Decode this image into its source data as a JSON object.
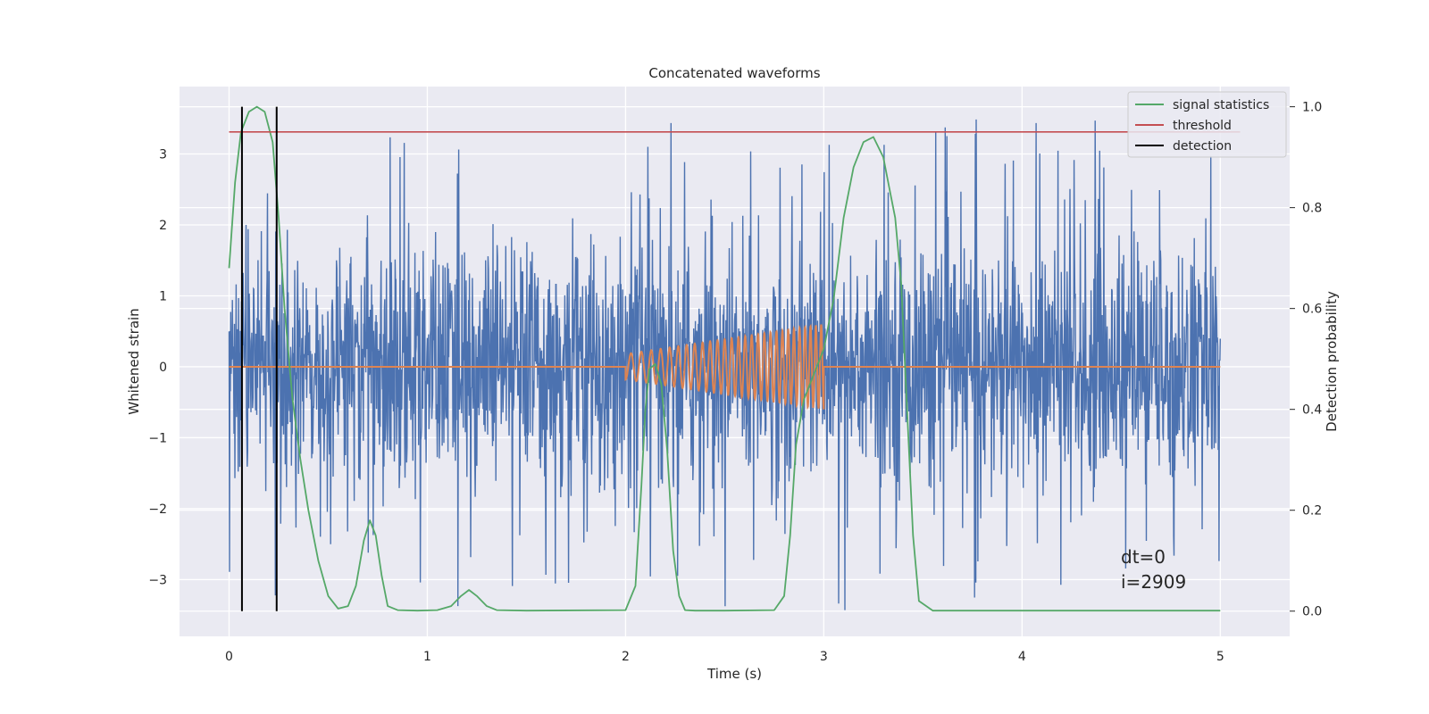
{
  "chart_data": {
    "type": "line",
    "title": "Concatenated waveforms",
    "xlabel": "Time (s)",
    "ylabel": "Whitened strain",
    "y2label": "Detection probability",
    "xlim": [
      -0.25,
      5.35
    ],
    "ylim": [
      -3.8,
      3.95
    ],
    "y2lim": [
      -0.05,
      1.04
    ],
    "x_ticks": [
      0,
      1,
      2,
      3,
      4,
      5
    ],
    "y_ticks": [
      -3,
      -2,
      -1,
      0,
      1,
      2,
      3
    ],
    "y2_ticks": [
      0.0,
      0.2,
      0.4,
      0.6,
      0.8,
      1.0
    ],
    "x_tick_labels": [
      "0",
      "1",
      "2",
      "3",
      "4",
      "5"
    ],
    "y_tick_labels": [
      "−3",
      "−2",
      "−1",
      "0",
      "1",
      "2",
      "3"
    ],
    "y2_tick_labels": [
      "0.0",
      "0.2",
      "0.4",
      "0.6",
      "0.8",
      "1.0"
    ],
    "grid": true,
    "legend_position": "top-right",
    "legend": [
      "signal statistics",
      "threshold",
      "detection"
    ],
    "colors": {
      "strain": "#4c72b0",
      "injection": "#dd8452",
      "signal_statistics": "#55a868",
      "threshold": "#c44e52",
      "detection": "#000000",
      "plot_bg": "#eaeaf2",
      "grid": "#ffffff"
    },
    "series": [
      {
        "name": "strain noise",
        "axis": "left",
        "x_range": [
          0,
          5
        ],
        "approx_range": [
          -3.5,
          3.6
        ]
      },
      {
        "name": "injected signal",
        "axis": "left",
        "x_range": [
          2.0,
          3.0
        ],
        "amplitude_start": 0.18,
        "amplitude_end": 0.6
      },
      {
        "name": "signal statistics",
        "axis": "right",
        "x": [
          0.0,
          0.03,
          0.06,
          0.1,
          0.14,
          0.18,
          0.22,
          0.25,
          0.28,
          0.32,
          0.36,
          0.4,
          0.45,
          0.5,
          0.55,
          0.6,
          0.64,
          0.68,
          0.71,
          0.74,
          0.77,
          0.8,
          0.85,
          0.95,
          1.05,
          1.12,
          1.17,
          1.21,
          1.25,
          1.3,
          1.35,
          1.5,
          2.0,
          2.05,
          2.08,
          2.1,
          2.12,
          2.15,
          2.18,
          2.21,
          2.24,
          2.27,
          2.3,
          2.35,
          2.5,
          2.75,
          2.8,
          2.83,
          2.86,
          2.9,
          2.95,
          3.0,
          3.05,
          3.1,
          3.15,
          3.2,
          3.25,
          3.3,
          3.33,
          3.36,
          3.39,
          3.42,
          3.45,
          3.48,
          3.55,
          4.0,
          5.0
        ],
        "y": [
          0.68,
          0.85,
          0.95,
          0.99,
          1.0,
          0.99,
          0.93,
          0.78,
          0.6,
          0.42,
          0.3,
          0.2,
          0.1,
          0.03,
          0.005,
          0.01,
          0.05,
          0.14,
          0.18,
          0.15,
          0.07,
          0.01,
          0.002,
          0.001,
          0.002,
          0.01,
          0.03,
          0.042,
          0.03,
          0.01,
          0.002,
          0.001,
          0.002,
          0.05,
          0.25,
          0.4,
          0.48,
          0.49,
          0.45,
          0.32,
          0.12,
          0.03,
          0.002,
          0.001,
          0.001,
          0.002,
          0.03,
          0.15,
          0.33,
          0.42,
          0.47,
          0.52,
          0.62,
          0.78,
          0.88,
          0.93,
          0.94,
          0.9,
          0.84,
          0.78,
          0.65,
          0.4,
          0.15,
          0.02,
          0.001,
          0.001,
          0.001
        ]
      },
      {
        "name": "threshold",
        "axis": "right",
        "x": [
          0,
          5.1
        ],
        "y": [
          0.95,
          0.95
        ]
      },
      {
        "name": "detection",
        "axis": "right",
        "x_positions": [
          0.065,
          0.24
        ],
        "y_range": [
          0.0,
          1.0
        ]
      }
    ],
    "annotations": [
      "dt=0",
      "i=2909"
    ]
  }
}
